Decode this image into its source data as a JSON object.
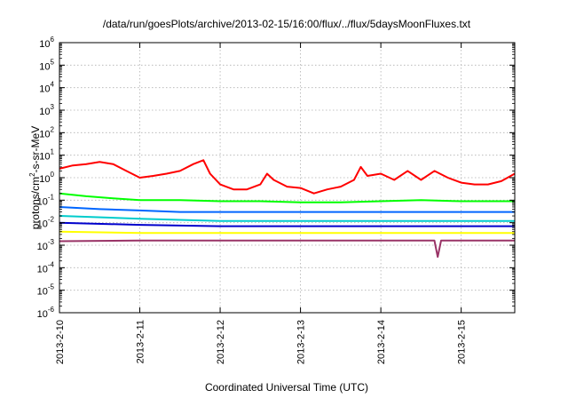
{
  "chart_data": {
    "type": "line",
    "title": "/data/run/goesPlots/archive/2013-02-15/16:00/flux/../flux/5daysMoonFluxes.txt",
    "xlabel": "Coordinated Universal Time (UTC)",
    "ylabel": {
      "base": "protons/cm",
      "sup": "2",
      "rest": "-s-sr-MeV"
    },
    "yscale": "log",
    "ylim": [
      1e-06,
      1000000.0
    ],
    "y_ticks": [
      {
        "base": "10",
        "exp": "6"
      },
      {
        "base": "10",
        "exp": "5"
      },
      {
        "base": "10",
        "exp": "4"
      },
      {
        "base": "10",
        "exp": "3"
      },
      {
        "base": "10",
        "exp": "2"
      },
      {
        "base": "10",
        "exp": "1"
      },
      {
        "base": "10",
        "exp": "0"
      },
      {
        "base": "10",
        "exp": "-1"
      },
      {
        "base": "10",
        "exp": "-2"
      },
      {
        "base": "10",
        "exp": "-3"
      },
      {
        "base": "10",
        "exp": "-4"
      },
      {
        "base": "10",
        "exp": "-5"
      },
      {
        "base": "10",
        "exp": "-6"
      }
    ],
    "xlim": [
      "2013-02-10 00:00",
      "2013-02-15 16:00"
    ],
    "x_ticks": [
      "2013-2-10",
      "2013-2-11",
      "2013-2-12",
      "2013-2-13",
      "2013-2-14",
      "2013-2-15"
    ],
    "grid": true,
    "series": [
      {
        "color": "#ff0000",
        "x": [
          "2013-02-10 00:00",
          "2013-02-10 04:00",
          "2013-02-10 08:00",
          "2013-02-10 12:00",
          "2013-02-10 16:00",
          "2013-02-10 20:00",
          "2013-02-11 00:00",
          "2013-02-11 04:00",
          "2013-02-11 08:00",
          "2013-02-11 12:00",
          "2013-02-11 16:00",
          "2013-02-11 19:00",
          "2013-02-11 21:00",
          "2013-02-12 00:00",
          "2013-02-12 04:00",
          "2013-02-12 08:00",
          "2013-02-12 12:00",
          "2013-02-12 14:00",
          "2013-02-12 16:00",
          "2013-02-12 20:00",
          "2013-02-13 00:00",
          "2013-02-13 04:00",
          "2013-02-13 08:00",
          "2013-02-13 12:00",
          "2013-02-13 16:00",
          "2013-02-13 18:00",
          "2013-02-13 20:00",
          "2013-02-14 00:00",
          "2013-02-14 04:00",
          "2013-02-14 08:00",
          "2013-02-14 12:00",
          "2013-02-14 16:00",
          "2013-02-14 20:00",
          "2013-02-15 00:00",
          "2013-02-15 04:00",
          "2013-02-15 08:00",
          "2013-02-15 12:00",
          "2013-02-15 16:00"
        ],
        "y": [
          2.5,
          3.5,
          4,
          5,
          4,
          2,
          1,
          1.2,
          1.5,
          2,
          4,
          6,
          1.5,
          0.5,
          0.3,
          0.3,
          0.5,
          1.5,
          0.8,
          0.4,
          0.35,
          0.2,
          0.3,
          0.4,
          0.8,
          3,
          1.2,
          1.5,
          0.8,
          2,
          0.8,
          2,
          1,
          0.6,
          0.5,
          0.5,
          0.7,
          1.5
        ]
      },
      {
        "color": "#00ff00",
        "x": [
          "2013-02-10 00:00",
          "2013-02-10 08:00",
          "2013-02-10 16:00",
          "2013-02-11 00:00",
          "2013-02-11 12:00",
          "2013-02-12 00:00",
          "2013-02-12 12:00",
          "2013-02-13 00:00",
          "2013-02-13 12:00",
          "2013-02-14 00:00",
          "2013-02-14 12:00",
          "2013-02-15 00:00",
          "2013-02-15 16:00"
        ],
        "y": [
          0.2,
          0.15,
          0.12,
          0.1,
          0.1,
          0.09,
          0.09,
          0.08,
          0.08,
          0.09,
          0.1,
          0.09,
          0.09
        ]
      },
      {
        "color": "#0066ff",
        "x": [
          "2013-02-10 00:00",
          "2013-02-10 12:00",
          "2013-02-11 00:00",
          "2013-02-11 12:00",
          "2013-02-12 00:00",
          "2013-02-12 12:00",
          "2013-02-13 00:00",
          "2013-02-13 12:00",
          "2013-02-14 00:00",
          "2013-02-14 12:00",
          "2013-02-15 00:00",
          "2013-02-15 16:00"
        ],
        "y": [
          0.05,
          0.04,
          0.035,
          0.03,
          0.03,
          0.03,
          0.03,
          0.03,
          0.03,
          0.03,
          0.03,
          0.03
        ]
      },
      {
        "color": "#00cccc",
        "x": [
          "2013-02-10 00:00",
          "2013-02-11 00:00",
          "2013-02-12 00:00",
          "2013-02-13 00:00",
          "2013-02-14 00:00",
          "2013-02-15 00:00",
          "2013-02-15 16:00"
        ],
        "y": [
          0.02,
          0.015,
          0.012,
          0.012,
          0.012,
          0.012,
          0.012
        ]
      },
      {
        "color": "#0000cc",
        "x": [
          "2013-02-10 00:00",
          "2013-02-11 00:00",
          "2013-02-12 00:00",
          "2013-02-13 00:00",
          "2013-02-14 00:00",
          "2013-02-15 00:00",
          "2013-02-15 16:00"
        ],
        "y": [
          0.01,
          0.008,
          0.007,
          0.007,
          0.007,
          0.007,
          0.007
        ]
      },
      {
        "color": "#ffff00",
        "x": [
          "2013-02-10 00:00",
          "2013-02-11 00:00",
          "2013-02-12 00:00",
          "2013-02-13 00:00",
          "2013-02-14 00:00",
          "2013-02-15 00:00",
          "2013-02-15 16:00"
        ],
        "y": [
          0.004,
          0.0035,
          0.0035,
          0.0035,
          0.0035,
          0.0035,
          0.0035
        ]
      },
      {
        "color": "#993366",
        "x": [
          "2013-02-10 00:00",
          "2013-02-11 00:00",
          "2013-02-12 00:00",
          "2013-02-13 00:00",
          "2013-02-14 00:00",
          "2013-02-14 16:00",
          "2013-02-14 17:00",
          "2013-02-14 18:00",
          "2013-02-15 00:00",
          "2013-02-15 16:00"
        ],
        "y": [
          0.0015,
          0.0016,
          0.0016,
          0.0016,
          0.0016,
          0.0016,
          0.0003,
          0.0016,
          0.0016,
          0.0016
        ]
      }
    ]
  }
}
